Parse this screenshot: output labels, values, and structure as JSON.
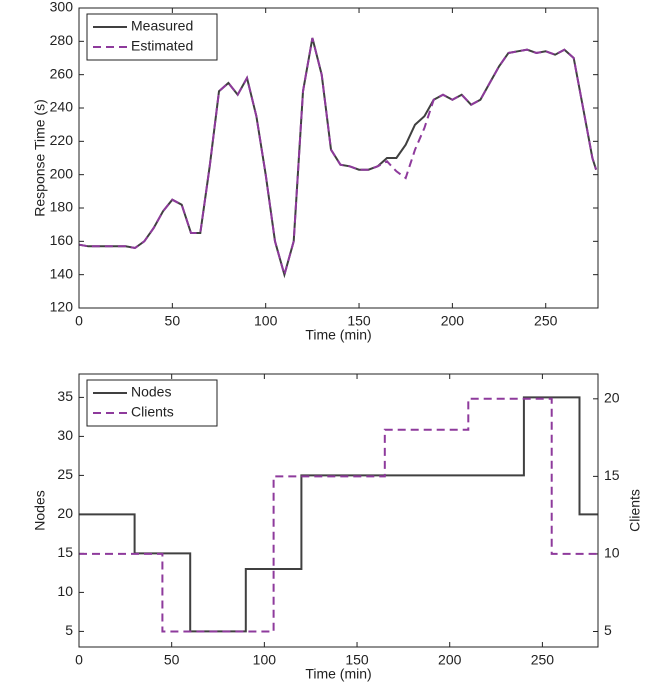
{
  "chart_data": [
    {
      "type": "line",
      "xlabel": "Time (min)",
      "ylabel": "Response Time (s)",
      "xlim": [
        0,
        278
      ],
      "xticks": [
        0,
        50,
        100,
        150,
        200,
        250
      ],
      "ylim": [
        120,
        300
      ],
      "yticks": [
        120,
        140,
        160,
        180,
        200,
        220,
        240,
        260,
        280,
        300
      ],
      "legend": "upper left",
      "x": [
        0,
        5,
        10,
        15,
        20,
        25,
        30,
        35,
        40,
        45,
        50,
        55,
        60,
        65,
        70,
        75,
        80,
        85,
        90,
        95,
        100,
        105,
        110,
        115,
        120,
        125,
        130,
        135,
        140,
        145,
        150,
        155,
        160,
        165,
        170,
        175,
        180,
        185,
        190,
        195,
        200,
        205,
        210,
        215,
        220,
        225,
        230,
        235,
        240,
        245,
        250,
        255,
        260,
        265,
        270,
        275,
        277
      ],
      "series": [
        {
          "name": "Measured",
          "color": "#404040",
          "linestyle": "solid",
          "values": [
            158,
            157,
            157,
            157,
            157,
            157,
            156,
            160,
            168,
            178,
            185,
            182,
            165,
            165,
            205,
            250,
            255,
            248,
            258,
            235,
            200,
            160,
            140,
            160,
            250,
            282,
            260,
            215,
            206,
            205,
            203,
            203,
            205,
            210,
            210,
            218,
            230,
            235,
            245,
            248,
            245,
            248,
            242,
            245,
            255,
            265,
            273,
            274,
            275,
            273,
            274,
            272,
            275,
            270,
            240,
            210,
            203
          ]
        },
        {
          "name": "Estimated",
          "color": "#8e3a9c",
          "linestyle": "dashed",
          "values": [
            158,
            157,
            157,
            157,
            157,
            157,
            156,
            160,
            168,
            178,
            185,
            182,
            165,
            165,
            205,
            250,
            255,
            248,
            258,
            235,
            200,
            160,
            140,
            160,
            250,
            282,
            260,
            215,
            206,
            205,
            203,
            203,
            205,
            208,
            202,
            198,
            215,
            228,
            245,
            248,
            245,
            248,
            242,
            245,
            255,
            265,
            273,
            274,
            275,
            273,
            274,
            272,
            275,
            270,
            240,
            210,
            203
          ]
        }
      ]
    },
    {
      "type": "line",
      "xlabel": "Time (min)",
      "ylabel": "Nodes",
      "y2label": "Clients",
      "xlim": [
        0,
        280
      ],
      "xticks": [
        0,
        50,
        100,
        150,
        200,
        250
      ],
      "ylim": [
        3,
        38
      ],
      "yticks": [
        5,
        10,
        15,
        20,
        25,
        30,
        35
      ],
      "y2lim": [
        4,
        21.6
      ],
      "y2ticks": [
        5,
        10,
        15,
        20
      ],
      "legend": "upper left",
      "series": [
        {
          "name": "Nodes",
          "color": "#404040",
          "linestyle": "solid",
          "x": [
            0,
            30,
            30,
            60,
            60,
            90,
            90,
            120,
            120,
            240,
            240,
            270,
            270,
            280
          ],
          "values": [
            20,
            20,
            15,
            15,
            5,
            5,
            13,
            13,
            25,
            25,
            35,
            35,
            20,
            20
          ]
        },
        {
          "name": "Clients",
          "color": "#8e3a9c",
          "linestyle": "dashed",
          "axis": "y2",
          "x": [
            0,
            45,
            45,
            105,
            105,
            165,
            165,
            210,
            210,
            255,
            255,
            280
          ],
          "values": [
            10,
            10,
            5,
            5,
            15,
            15,
            18,
            18,
            20,
            20,
            10,
            10
          ]
        }
      ]
    }
  ]
}
